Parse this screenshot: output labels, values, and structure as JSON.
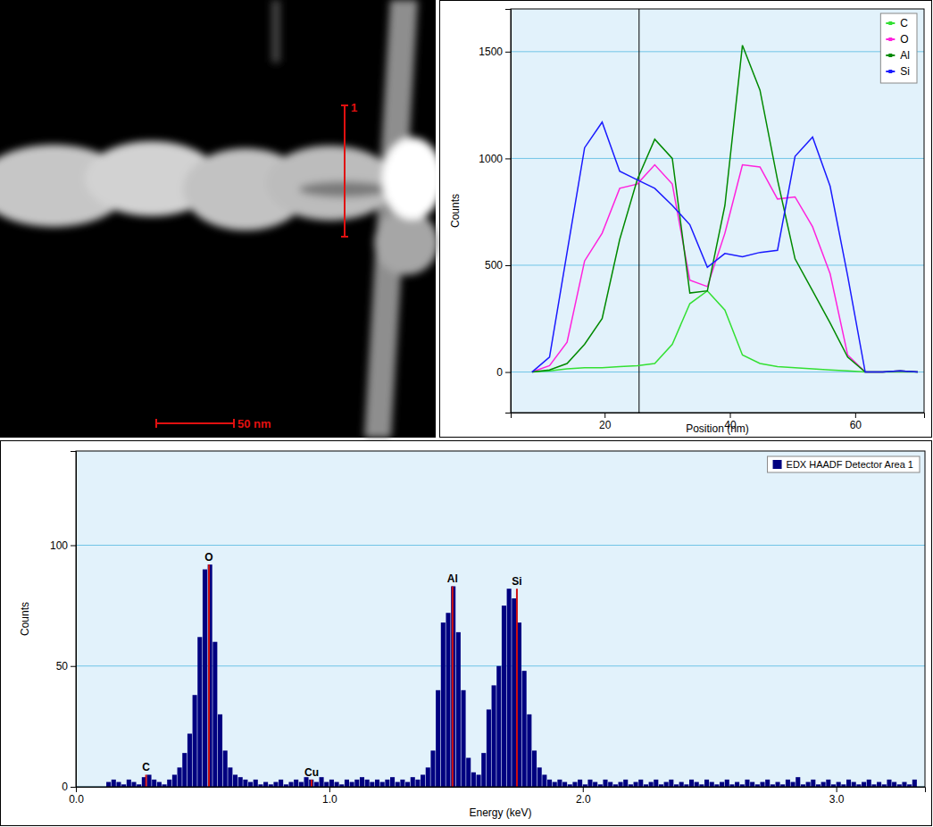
{
  "image": {
    "marker_label": "1",
    "scale_bar": "50 nm"
  },
  "chart_data": [
    {
      "type": "line",
      "x_label": "Position (nm)",
      "y_label": "Counts",
      "x": [
        8.4,
        11.2,
        14,
        16.8,
        19.6,
        22.4,
        25.2,
        28,
        30.8,
        33.6,
        36.4,
        39.2,
        42,
        44.8,
        47.6,
        50.4,
        53.2,
        56,
        58.8,
        61.6,
        64.4,
        67.2,
        70
      ],
      "series": [
        {
          "name": "C",
          "color": "#33e033",
          "values": [
            0,
            5,
            15,
            20,
            20,
            25,
            30,
            40,
            130,
            320,
            380,
            290,
            80,
            40,
            25,
            20,
            15,
            10,
            5,
            0,
            0,
            0,
            0
          ]
        },
        {
          "name": "O",
          "color": "#ff22dd",
          "values": [
            0,
            30,
            140,
            520,
            650,
            860,
            880,
            970,
            880,
            430,
            400,
            650,
            970,
            960,
            810,
            820,
            680,
            460,
            80,
            0,
            0,
            5,
            0
          ]
        },
        {
          "name": "Al",
          "color": "#008a00",
          "values": [
            0,
            10,
            40,
            130,
            250,
            620,
            900,
            1090,
            1000,
            370,
            380,
            780,
            1530,
            1320,
            900,
            530,
            380,
            230,
            70,
            0,
            0,
            5,
            0
          ]
        },
        {
          "name": "Si",
          "color": "#1a1aff",
          "values": [
            0,
            70,
            560,
            1050,
            1170,
            940,
            900,
            860,
            780,
            690,
            490,
            555,
            540,
            560,
            570,
            1010,
            1100,
            870,
            450,
            0,
            0,
            5,
            0
          ]
        }
      ],
      "cursor_position": 25.5,
      "xlim": [
        5,
        71
      ],
      "xticks": [
        20,
        40,
        60
      ],
      "ylim": [
        -190,
        1700
      ],
      "yticks": [
        0,
        500,
        1000,
        1500
      ],
      "grid": true,
      "legend": "top-right"
    },
    {
      "type": "histogram",
      "x_label": "Energy (keV)",
      "y_label": "Counts",
      "bins": [
        0.12,
        0.14,
        0.16,
        0.18,
        0.2,
        0.22,
        0.24,
        0.26,
        0.28,
        0.3,
        0.32,
        0.34,
        0.36,
        0.38,
        0.4,
        0.42,
        0.44,
        0.46,
        0.48,
        0.5,
        0.52,
        0.54,
        0.56,
        0.58,
        0.6,
        0.62,
        0.64,
        0.66,
        0.68,
        0.7,
        0.72,
        0.74,
        0.76,
        0.78,
        0.8,
        0.82,
        0.84,
        0.86,
        0.88,
        0.9,
        0.92,
        0.94,
        0.96,
        0.98,
        1.0,
        1.02,
        1.04,
        1.06,
        1.08,
        1.1,
        1.12,
        1.14,
        1.16,
        1.18,
        1.2,
        1.22,
        1.24,
        1.26,
        1.28,
        1.3,
        1.32,
        1.34,
        1.36,
        1.38,
        1.4,
        1.42,
        1.44,
        1.46,
        1.48,
        1.5,
        1.52,
        1.54,
        1.56,
        1.58,
        1.6,
        1.62,
        1.64,
        1.66,
        1.68,
        1.7,
        1.72,
        1.74,
        1.76,
        1.78,
        1.8,
        1.82,
        1.84,
        1.86,
        1.88,
        1.9,
        1.92,
        1.94,
        1.96,
        1.98,
        2.0,
        2.02,
        2.04,
        2.06,
        2.08,
        2.1,
        2.12,
        2.14,
        2.16,
        2.18,
        2.2,
        2.22,
        2.24,
        2.26,
        2.28,
        2.3,
        2.32,
        2.34,
        2.36,
        2.38,
        2.4,
        2.42,
        2.44,
        2.46,
        2.48,
        2.5,
        2.52,
        2.54,
        2.56,
        2.58,
        2.6,
        2.62,
        2.64,
        2.66,
        2.68,
        2.7,
        2.72,
        2.74,
        2.76,
        2.78,
        2.8,
        2.82,
        2.84,
        2.86,
        2.88,
        2.9,
        2.92,
        2.94,
        2.96,
        2.98,
        3.0,
        3.02,
        3.04,
        3.06,
        3.08,
        3.1,
        3.12,
        3.14,
        3.16,
        3.18,
        3.2,
        3.22,
        3.24,
        3.26,
        3.28,
        3.3,
        3.32
      ],
      "series": [
        {
          "name": "EDX HAADF Detector Area 1",
          "color": "#000080",
          "values": [
            2,
            3,
            2,
            1,
            3,
            2,
            1,
            4,
            5,
            3,
            2,
            1,
            3,
            5,
            8,
            14,
            22,
            38,
            62,
            90,
            92,
            60,
            30,
            15,
            8,
            5,
            4,
            3,
            2,
            3,
            1,
            2,
            1,
            2,
            3,
            1,
            2,
            3,
            2,
            4,
            3,
            2,
            4,
            2,
            3,
            2,
            1,
            3,
            2,
            3,
            4,
            3,
            2,
            3,
            2,
            3,
            4,
            2,
            3,
            2,
            4,
            3,
            5,
            8,
            15,
            40,
            68,
            72,
            83,
            64,
            40,
            12,
            6,
            5,
            14,
            32,
            42,
            50,
            75,
            82,
            78,
            68,
            48,
            30,
            15,
            8,
            5,
            3,
            2,
            3,
            2,
            1,
            2,
            3,
            1,
            3,
            2,
            1,
            3,
            2,
            1,
            2,
            3,
            1,
            2,
            3,
            1,
            2,
            3,
            1,
            2,
            3,
            1,
            2,
            1,
            3,
            2,
            1,
            3,
            2,
            1,
            2,
            3,
            1,
            2,
            1,
            3,
            2,
            1,
            2,
            3,
            1,
            2,
            1,
            3,
            2,
            4,
            1,
            2,
            3,
            1,
            2,
            3,
            1,
            2,
            1,
            3,
            2,
            1,
            2,
            3,
            1,
            2,
            1,
            3,
            2,
            1,
            2,
            1,
            3
          ]
        }
      ],
      "peak_labels": [
        {
          "label": "C",
          "energy": 0.277,
          "height": 5
        },
        {
          "label": "O",
          "energy": 0.525,
          "height": 92
        },
        {
          "label": "Cu",
          "energy": 0.93,
          "height": 3
        },
        {
          "label": "Al",
          "energy": 1.486,
          "height": 83
        },
        {
          "label": "Si",
          "energy": 1.74,
          "height": 82
        }
      ],
      "xlim": [
        0,
        3.35
      ],
      "xticks": [
        {
          "value": 0,
          "label": "0.0"
        },
        {
          "value": 1,
          "label": "1.0"
        },
        {
          "value": 2,
          "label": "2.0"
        },
        {
          "value": 3,
          "label": "3.0"
        }
      ],
      "ylim": [
        0,
        139
      ],
      "yticks": [
        0,
        50,
        100
      ],
      "grid": true,
      "legend": "top-right"
    }
  ]
}
